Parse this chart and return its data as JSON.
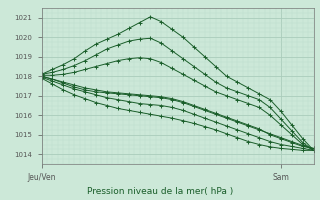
{
  "title": "Pression niveau de la mer( hPa )",
  "bg_color": "#cce8d8",
  "grid_major_color": "#aaccbb",
  "grid_minor_color": "#bbddcc",
  "line_color": "#1a5e2a",
  "ylim": [
    1013.5,
    1021.5
  ],
  "yticks": [
    1014,
    1015,
    1016,
    1017,
    1018,
    1019,
    1020,
    1021
  ],
  "xlim": [
    0,
    100
  ],
  "xlabel_left": "Jeu/Ven",
  "xlabel_right": "Sam",
  "xtick_left": 0,
  "xtick_right": 88,
  "series": [
    {
      "x": [
        0,
        4,
        8,
        12,
        16,
        20,
        24,
        28,
        32,
        36,
        40,
        44,
        48,
        52,
        56,
        60,
        64,
        68,
        72,
        76,
        80,
        84,
        88,
        92,
        96,
        100
      ],
      "y": [
        1018.1,
        1018.35,
        1018.6,
        1018.9,
        1019.3,
        1019.65,
        1019.9,
        1020.15,
        1020.45,
        1020.75,
        1021.05,
        1020.8,
        1020.4,
        1020.0,
        1019.5,
        1019.0,
        1018.5,
        1018.0,
        1017.7,
        1017.4,
        1017.1,
        1016.8,
        1016.2,
        1015.5,
        1014.8,
        1014.2
      ]
    },
    {
      "x": [
        0,
        4,
        8,
        12,
        16,
        20,
        24,
        28,
        32,
        36,
        40,
        44,
        48,
        52,
        56,
        60,
        64,
        68,
        72,
        76,
        80,
        84,
        88,
        92,
        96,
        100
      ],
      "y": [
        1018.1,
        1018.2,
        1018.35,
        1018.55,
        1018.8,
        1019.1,
        1019.4,
        1019.6,
        1019.8,
        1019.9,
        1019.95,
        1019.7,
        1019.3,
        1018.9,
        1018.5,
        1018.1,
        1017.7,
        1017.4,
        1017.2,
        1017.0,
        1016.8,
        1016.4,
        1015.8,
        1015.2,
        1014.6,
        1014.2
      ]
    },
    {
      "x": [
        0,
        4,
        8,
        12,
        16,
        20,
        24,
        28,
        32,
        36,
        40,
        44,
        48,
        52,
        56,
        60,
        64,
        68,
        72,
        76,
        80,
        84,
        88,
        92,
        96,
        100
      ],
      "y": [
        1018.05,
        1018.05,
        1018.1,
        1018.2,
        1018.35,
        1018.5,
        1018.65,
        1018.8,
        1018.9,
        1018.95,
        1018.9,
        1018.7,
        1018.4,
        1018.1,
        1017.8,
        1017.5,
        1017.2,
        1017.0,
        1016.8,
        1016.6,
        1016.4,
        1016.0,
        1015.5,
        1015.0,
        1014.5,
        1014.2
      ]
    },
    {
      "x": [
        0,
        4,
        8,
        12,
        16,
        20,
        24,
        28,
        32,
        36,
        40,
        44,
        48,
        52,
        56,
        60,
        64,
        68,
        72,
        76,
        80,
        84,
        88,
        92,
        96,
        100
      ],
      "y": [
        1018.0,
        1017.85,
        1017.7,
        1017.55,
        1017.4,
        1017.3,
        1017.2,
        1017.15,
        1017.1,
        1017.05,
        1017.0,
        1016.95,
        1016.85,
        1016.7,
        1016.5,
        1016.3,
        1016.1,
        1015.9,
        1015.7,
        1015.5,
        1015.3,
        1015.0,
        1014.8,
        1014.6,
        1014.4,
        1014.3
      ]
    },
    {
      "x": [
        0,
        4,
        8,
        12,
        16,
        20,
        24,
        28,
        32,
        36,
        40,
        44,
        48,
        52,
        56,
        60,
        64,
        68,
        72,
        76,
        80,
        84,
        88,
        92,
        96,
        100
      ],
      "y": [
        1017.95,
        1017.75,
        1017.55,
        1017.35,
        1017.2,
        1017.05,
        1016.9,
        1016.8,
        1016.7,
        1016.6,
        1016.55,
        1016.5,
        1016.4,
        1016.25,
        1016.05,
        1015.85,
        1015.65,
        1015.45,
        1015.25,
        1015.05,
        1014.85,
        1014.65,
        1014.5,
        1014.4,
        1014.3,
        1014.2
      ]
    },
    {
      "x": [
        0,
        4,
        8,
        12,
        16,
        20,
        24,
        28,
        32,
        36,
        40,
        44,
        48,
        52,
        56,
        60,
        64,
        68,
        72,
        76,
        80,
        84,
        88,
        92,
        96,
        100
      ],
      "y": [
        1017.9,
        1017.6,
        1017.3,
        1017.05,
        1016.85,
        1016.65,
        1016.5,
        1016.35,
        1016.25,
        1016.15,
        1016.05,
        1015.95,
        1015.85,
        1015.72,
        1015.58,
        1015.42,
        1015.25,
        1015.05,
        1014.85,
        1014.65,
        1014.5,
        1014.38,
        1014.3,
        1014.25,
        1014.2,
        1014.2
      ]
    },
    {
      "x": [
        0,
        4,
        8,
        12,
        16,
        20,
        24,
        28,
        32,
        36,
        40,
        44,
        48,
        52,
        56,
        60,
        64,
        68,
        72,
        76,
        80,
        84,
        88,
        92,
        96,
        100
      ],
      "y": [
        1018.0,
        1017.85,
        1017.65,
        1017.45,
        1017.3,
        1017.2,
        1017.15,
        1017.1,
        1017.05,
        1017.0,
        1016.95,
        1016.9,
        1016.8,
        1016.65,
        1016.45,
        1016.25,
        1016.05,
        1015.85,
        1015.65,
        1015.45,
        1015.25,
        1015.05,
        1014.85,
        1014.65,
        1014.45,
        1014.3
      ]
    }
  ]
}
